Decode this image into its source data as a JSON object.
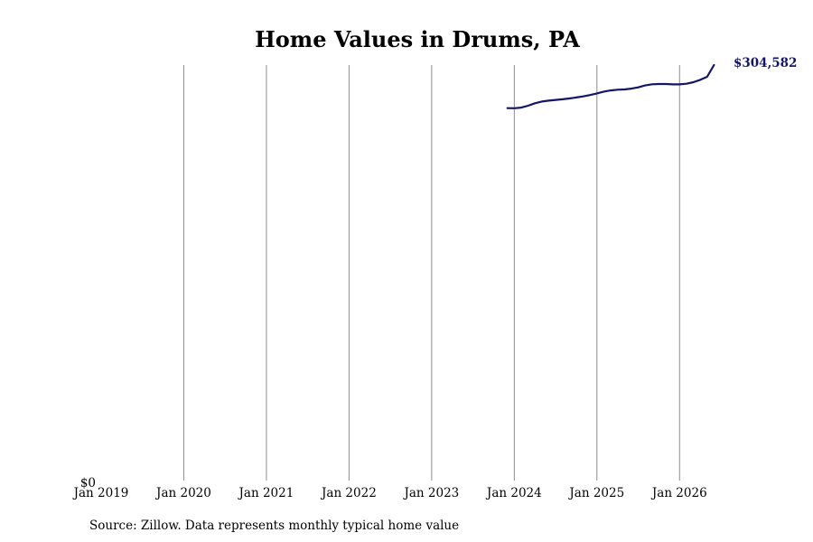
{
  "chart_data": {
    "type": "line",
    "title": "Home Values in Drums, PA",
    "xlabel": "",
    "ylabel": "",
    "x_tick_labels": [
      "Jan 2019",
      "Jan 2020",
      "Jan 2021",
      "Jan 2022",
      "Jan 2023",
      "Jan 2024",
      "Jan 2025",
      "Jan 2026"
    ],
    "x_ticks": [
      "2019-01",
      "2020-01",
      "2021-01",
      "2022-01",
      "2023-01",
      "2024-01",
      "2025-01",
      "2026-01"
    ],
    "y_tick_labels": [
      "$0"
    ],
    "ylim": [
      0,
      304582
    ],
    "grid": "vertical",
    "series": [
      {
        "color": "#14146b",
        "x": [
          "2023-12",
          "2024-01",
          "2024-02",
          "2024-03",
          "2024-04",
          "2024-05",
          "2024-06",
          "2024-07",
          "2024-08",
          "2024-09",
          "2024-10",
          "2024-11",
          "2024-12",
          "2025-01",
          "2025-02",
          "2025-03",
          "2025-04",
          "2025-05",
          "2025-06",
          "2025-07",
          "2025-08",
          "2025-09",
          "2025-10",
          "2025-11",
          "2025-12",
          "2026-01",
          "2026-02",
          "2026-03",
          "2026-04",
          "2026-05",
          "2026-06"
        ],
        "values": [
          273000,
          272900,
          273400,
          274800,
          276600,
          277800,
          278500,
          279000,
          279500,
          280100,
          280800,
          281600,
          282600,
          283800,
          285100,
          286000,
          286500,
          286700,
          287300,
          288200,
          289600,
          290500,
          290700,
          290700,
          290400,
          290400,
          290900,
          292000,
          293700,
          296000,
          304582
        ]
      }
    ],
    "end_label": "$304,582",
    "source": "Source: Zillow. Data represents monthly typical home value"
  }
}
